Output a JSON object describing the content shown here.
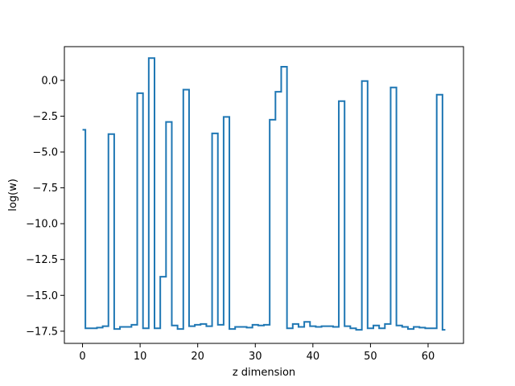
{
  "chart_data": {
    "type": "line",
    "drawstyle": "steps-mid",
    "title": "",
    "xlabel": "z dimension",
    "ylabel": "log(w)",
    "xlim": [
      -3.15,
      66.15
    ],
    "ylim": [
      -18.35,
      2.35
    ],
    "x_ticks": [
      0,
      10,
      20,
      30,
      40,
      50,
      60
    ],
    "x_tick_labels": [
      "0",
      "10",
      "20",
      "30",
      "40",
      "50",
      "60"
    ],
    "y_ticks": [
      0.0,
      -2.5,
      -5.0,
      -7.5,
      -10.0,
      -12.5,
      -15.0,
      -17.5
    ],
    "y_tick_labels": [
      "0.0",
      "−2.5",
      "−5.0",
      "−7.5",
      "−10.0",
      "−12.5",
      "−15.0",
      "−17.5"
    ],
    "grid": false,
    "line_color": "#1f77b4",
    "x": [
      0,
      1,
      2,
      3,
      4,
      5,
      6,
      7,
      8,
      9,
      10,
      11,
      12,
      13,
      14,
      15,
      16,
      17,
      18,
      19,
      20,
      21,
      22,
      23,
      24,
      25,
      26,
      27,
      28,
      29,
      30,
      31,
      32,
      33,
      34,
      35,
      36,
      37,
      38,
      39,
      40,
      41,
      42,
      43,
      44,
      45,
      46,
      47,
      48,
      49,
      50,
      51,
      52,
      53,
      54,
      55,
      56,
      57,
      58,
      59,
      60,
      61,
      62,
      63
    ],
    "y": [
      -3.45,
      -17.3,
      -17.3,
      -17.25,
      -17.15,
      -3.75,
      -17.35,
      -17.2,
      -17.2,
      -17.05,
      -0.9,
      -17.3,
      1.55,
      -17.3,
      -13.7,
      -2.9,
      -17.1,
      -17.35,
      -0.65,
      -17.15,
      -17.05,
      -17.0,
      -17.15,
      -3.7,
      -17.05,
      -2.55,
      -17.35,
      -17.2,
      -17.2,
      -17.25,
      -17.05,
      -17.1,
      -17.05,
      -2.75,
      -0.8,
      0.95,
      -17.3,
      -17.0,
      -17.2,
      -16.85,
      -17.15,
      -17.2,
      -17.15,
      -17.15,
      -17.2,
      -1.45,
      -17.15,
      -17.3,
      -17.4,
      -0.05,
      -17.3,
      -17.1,
      -17.3,
      -17.0,
      -0.5,
      -17.1,
      -17.2,
      -17.35,
      -17.2,
      -17.25,
      -17.3,
      -17.3,
      -1.0,
      -17.4
    ]
  }
}
